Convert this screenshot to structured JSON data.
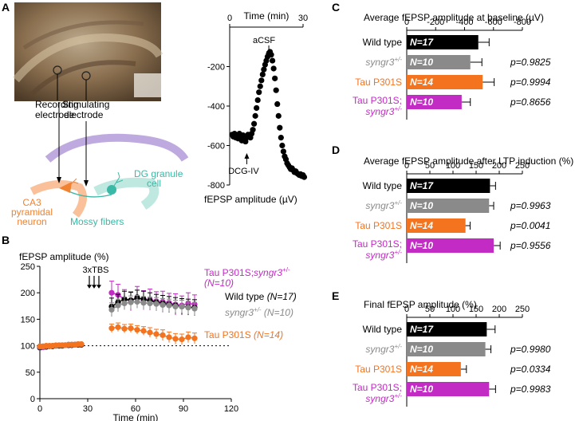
{
  "panels": {
    "A": {
      "label": "A",
      "recording_electrode": [
        "Recording",
        "electrode"
      ],
      "stimulating_electrode": [
        "Stimulating",
        "electrode"
      ],
      "dg_label": [
        "DG granule",
        "cell"
      ],
      "ca3_label": [
        "CA3",
        "pyramidal",
        "neuron"
      ],
      "mossy_label": "Mossy fibers",
      "colors": {
        "ca3": "#f08232",
        "dg": "#3bb8a6",
        "mossy": "#8ed7cd",
        "purple": "#b7a0dc",
        "orange_band": "#f9c09a"
      }
    },
    "A_trace": {
      "chart_data": {
        "type": "scatter",
        "title": "Time (min)",
        "xlabel": "Time (min)",
        "ylabel": "fEPSP amplitude (µV)",
        "xlim": [
          0,
          30
        ],
        "ylim": [
          -800,
          0
        ],
        "xticks": [
          "0",
          "30"
        ],
        "yticks": [
          "-200",
          "-400",
          "-600",
          "-800"
        ],
        "annotations": {
          "top": "aCSF",
          "bottom": "DCG-IV"
        },
        "aCSF_time": 16,
        "dcg_time": 7,
        "x": [
          0,
          0.5,
          1,
          1.5,
          2,
          2.5,
          3,
          3.5,
          4,
          4.5,
          5,
          5.5,
          6,
          6.5,
          7,
          7.5,
          8,
          8.5,
          9,
          9.5,
          10,
          10.5,
          11,
          11.5,
          12,
          12.5,
          13,
          13.5,
          14,
          14.5,
          15,
          15.5,
          16,
          16.5,
          17,
          17.5,
          18,
          18.5,
          19,
          19.5,
          20,
          20.5,
          21,
          21.5,
          22,
          22.5,
          23,
          23.5,
          24,
          24.5,
          25,
          25.5,
          26,
          26.5,
          27,
          27.5,
          28,
          28.5,
          29,
          29.5
        ],
        "y": [
          -545,
          -555,
          -540,
          -560,
          -550,
          -565,
          -540,
          -550,
          -575,
          -548,
          -560,
          -580,
          -560,
          -545,
          -555,
          -560,
          -540,
          -520,
          -490,
          -450,
          -410,
          -370,
          -330,
          -300,
          -270,
          -240,
          -215,
          -190,
          -170,
          -150,
          -135,
          -125,
          -140,
          -170,
          -210,
          -260,
          -320,
          -390,
          -450,
          -510,
          -560,
          -600,
          -630,
          -655,
          -670,
          -690,
          -700,
          -710,
          -720,
          -715,
          -725,
          -735,
          -730,
          -740,
          -745,
          -750,
          -745,
          -755,
          -750,
          -760
        ]
      }
    },
    "B": {
      "label": "B",
      "chart_data": {
        "type": "line",
        "title": "fEPSP amplitude (%)",
        "xlabel": "Time (min)",
        "ylabel": "fEPSP amplitude (%)",
        "xlim": [
          0,
          120
        ],
        "ylim": [
          0,
          250
        ],
        "xticks": [
          "0",
          "30",
          "60",
          "90",
          "120"
        ],
        "yticks": [
          "0",
          "50",
          "100",
          "150",
          "200",
          "250"
        ],
        "stimulus": "3xTBS",
        "stimulus_times": [
          31,
          34,
          37
        ],
        "baseline": 100,
        "series": [
          {
            "name": "Tau P301S;syngr3+/-",
            "n": "(N=10)",
            "color": "#c22bc4",
            "x": [
              0,
              2,
              4,
              6,
              8,
              10,
              12,
              14,
              16,
              18,
              20,
              22,
              24,
              26,
              45,
              49,
              53,
              57,
              61,
              65,
              69,
              73,
              77,
              81,
              85,
              89,
              93,
              97
            ],
            "y": [
              96,
              97,
              98,
              99,
              99,
              100,
              100,
              101,
              101,
              101,
              102,
              102,
              102,
              102,
              200,
              196,
              188,
              184,
              192,
              186,
              187,
              184,
              183,
              181,
              178,
              176,
              180,
              178
            ],
            "err": [
              3,
              3,
              3,
              3,
              3,
              3,
              3,
              3,
              3,
              3,
              3,
              3,
              3,
              3,
              22,
              20,
              18,
              18,
              20,
              18,
              20,
              18,
              20,
              18,
              20,
              18,
              20,
              18
            ]
          },
          {
            "name": "Wild type",
            "n": "(N=17)",
            "color": "#000000",
            "x": [
              0,
              2,
              4,
              6,
              8,
              10,
              12,
              14,
              16,
              18,
              20,
              22,
              24,
              26,
              45,
              49,
              53,
              57,
              61,
              65,
              69,
              73,
              77,
              81,
              85,
              89,
              93,
              97
            ],
            "y": [
              97,
              98,
              98,
              99,
              99,
              100,
              100,
              100,
              101,
              101,
              101,
              102,
              102,
              102,
              174,
              182,
              188,
              186,
              190,
              188,
              185,
              182,
              180,
              178,
              176,
              174,
              173,
              172
            ],
            "err": [
              2,
              2,
              2,
              2,
              2,
              2,
              2,
              2,
              2,
              2,
              2,
              2,
              2,
              2,
              16,
              15,
              15,
              15,
              15,
              15,
              15,
              15,
              15,
              15,
              15,
              15,
              15,
              15
            ]
          },
          {
            "name": "syngr3+/-",
            "n": "(N=10)",
            "color": "#8a8a8a",
            "x": [
              0,
              2,
              4,
              6,
              8,
              10,
              12,
              14,
              16,
              18,
              20,
              22,
              24,
              26,
              45,
              49,
              53,
              57,
              61,
              65,
              69,
              73,
              77,
              81,
              85,
              89,
              93,
              97
            ],
            "y": [
              98,
              98,
              99,
              99,
              100,
              100,
              101,
              101,
              101,
              102,
              102,
              102,
              103,
              103,
              168,
              176,
              180,
              182,
              183,
              181,
              180,
              179,
              177,
              176,
              174,
              174,
              172,
              170
            ],
            "err": [
              2,
              2,
              2,
              2,
              2,
              2,
              2,
              2,
              2,
              2,
              2,
              2,
              2,
              2,
              13,
              12,
              12,
              12,
              12,
              12,
              12,
              12,
              12,
              12,
              12,
              12,
              12,
              12
            ]
          },
          {
            "name": "Tau P301S",
            "n": "(N=14)",
            "color": "#f4731e",
            "x": [
              0,
              2,
              4,
              6,
              8,
              10,
              12,
              14,
              16,
              18,
              20,
              22,
              24,
              26,
              45,
              49,
              53,
              57,
              61,
              65,
              69,
              73,
              77,
              81,
              85,
              89,
              93,
              97
            ],
            "y": [
              99,
              99,
              100,
              100,
              100,
              101,
              101,
              101,
              101,
              102,
              102,
              102,
              103,
              103,
              133,
              135,
              132,
              133,
              130,
              128,
              125,
              122,
              120,
              116,
              113,
              112,
              116,
              114
            ],
            "err": [
              2,
              2,
              2,
              2,
              2,
              2,
              2,
              2,
              2,
              2,
              2,
              2,
              2,
              2,
              8,
              8,
              8,
              8,
              8,
              8,
              9,
              9,
              10,
              10,
              10,
              10,
              10,
              10
            ]
          }
        ],
        "legend": [
          {
            "name": "Tau P301S;",
            "sup_base": "syngr3",
            "sup": "+/-",
            "n": "(N=10)",
            "color": "#c22bc4"
          },
          {
            "name": "Wild type",
            "n": "(N=17)",
            "color": "#000000"
          },
          {
            "name": "syngr3",
            "sup": "+/-",
            "n": "(N=10)",
            "color": "#8a8a8a"
          },
          {
            "name": "Tau P301S",
            "n": "(N=14)",
            "color": "#f4731e"
          }
        ]
      }
    },
    "C": {
      "label": "C",
      "chart_data": {
        "type": "bar",
        "title": "Average fEPSP amplitude at baseline (µV)",
        "xlim": [
          0,
          -800
        ],
        "xticks": [
          "0",
          "-200",
          "-400",
          "-600",
          "-800"
        ],
        "categories": [
          "Wild type",
          "syngr3+/-",
          "Tau P301S",
          "Tau P301S; syngr3+/-"
        ],
        "values": [
          -495,
          -440,
          -525,
          -380
        ],
        "err": [
          75,
          80,
          80,
          60
        ],
        "n": [
          "N=17",
          "N=10",
          "N=14",
          "N=10"
        ],
        "p": [
          "",
          "p=0.9825",
          "p=0.9994",
          "p=0.8656"
        ]
      }
    },
    "D": {
      "label": "D",
      "chart_data": {
        "type": "bar",
        "title": "Average fEPSP amplitude after LTP induction (%)",
        "xlim": [
          0,
          250
        ],
        "xticks": [
          "0",
          "50",
          "100",
          "150",
          "200",
          "250"
        ],
        "categories": [
          "Wild type",
          "syngr3+/-",
          "Tau P301S",
          "Tau P301S; syngr3+/-"
        ],
        "values": [
          180,
          178,
          127,
          188
        ],
        "err": [
          12,
          10,
          10,
          14
        ],
        "n": [
          "N=17",
          "N=10",
          "N=14",
          "N=10"
        ],
        "p": [
          "",
          "p=0.9963",
          "p=0.0041",
          "p=0.9556"
        ]
      }
    },
    "E": {
      "label": "E",
      "chart_data": {
        "type": "bar",
        "title": "Final fEPSP amplitude (%)",
        "xlim": [
          0,
          250
        ],
        "xticks": [
          "0",
          "50",
          "100",
          "150",
          "200",
          "250"
        ],
        "categories": [
          "Wild type",
          "syngr3+/-",
          "Tau P301S",
          "Tau P301S; syngr3+/-"
        ],
        "values": [
          173,
          170,
          117,
          178
        ],
        "err": [
          18,
          12,
          12,
          14
        ],
        "n": [
          "N=17",
          "N=10",
          "N=14",
          "N=10"
        ],
        "p": [
          "",
          "p=0.9980",
          "p=0.0334",
          "p=0.9983"
        ]
      }
    }
  },
  "bar_labels": {
    "wild_type": "Wild type",
    "syngr3": "syngr3",
    "sup": "+/-",
    "tau": "Tau P301S",
    "tau_double": "Tau P301S;"
  },
  "bar_colors": [
    "#000000",
    "#8a8a8a",
    "#f4731e",
    "#c22bc4"
  ],
  "label_colors": [
    "#000000",
    "#8a8a8a",
    "#f4731e",
    "#c22bc4"
  ]
}
